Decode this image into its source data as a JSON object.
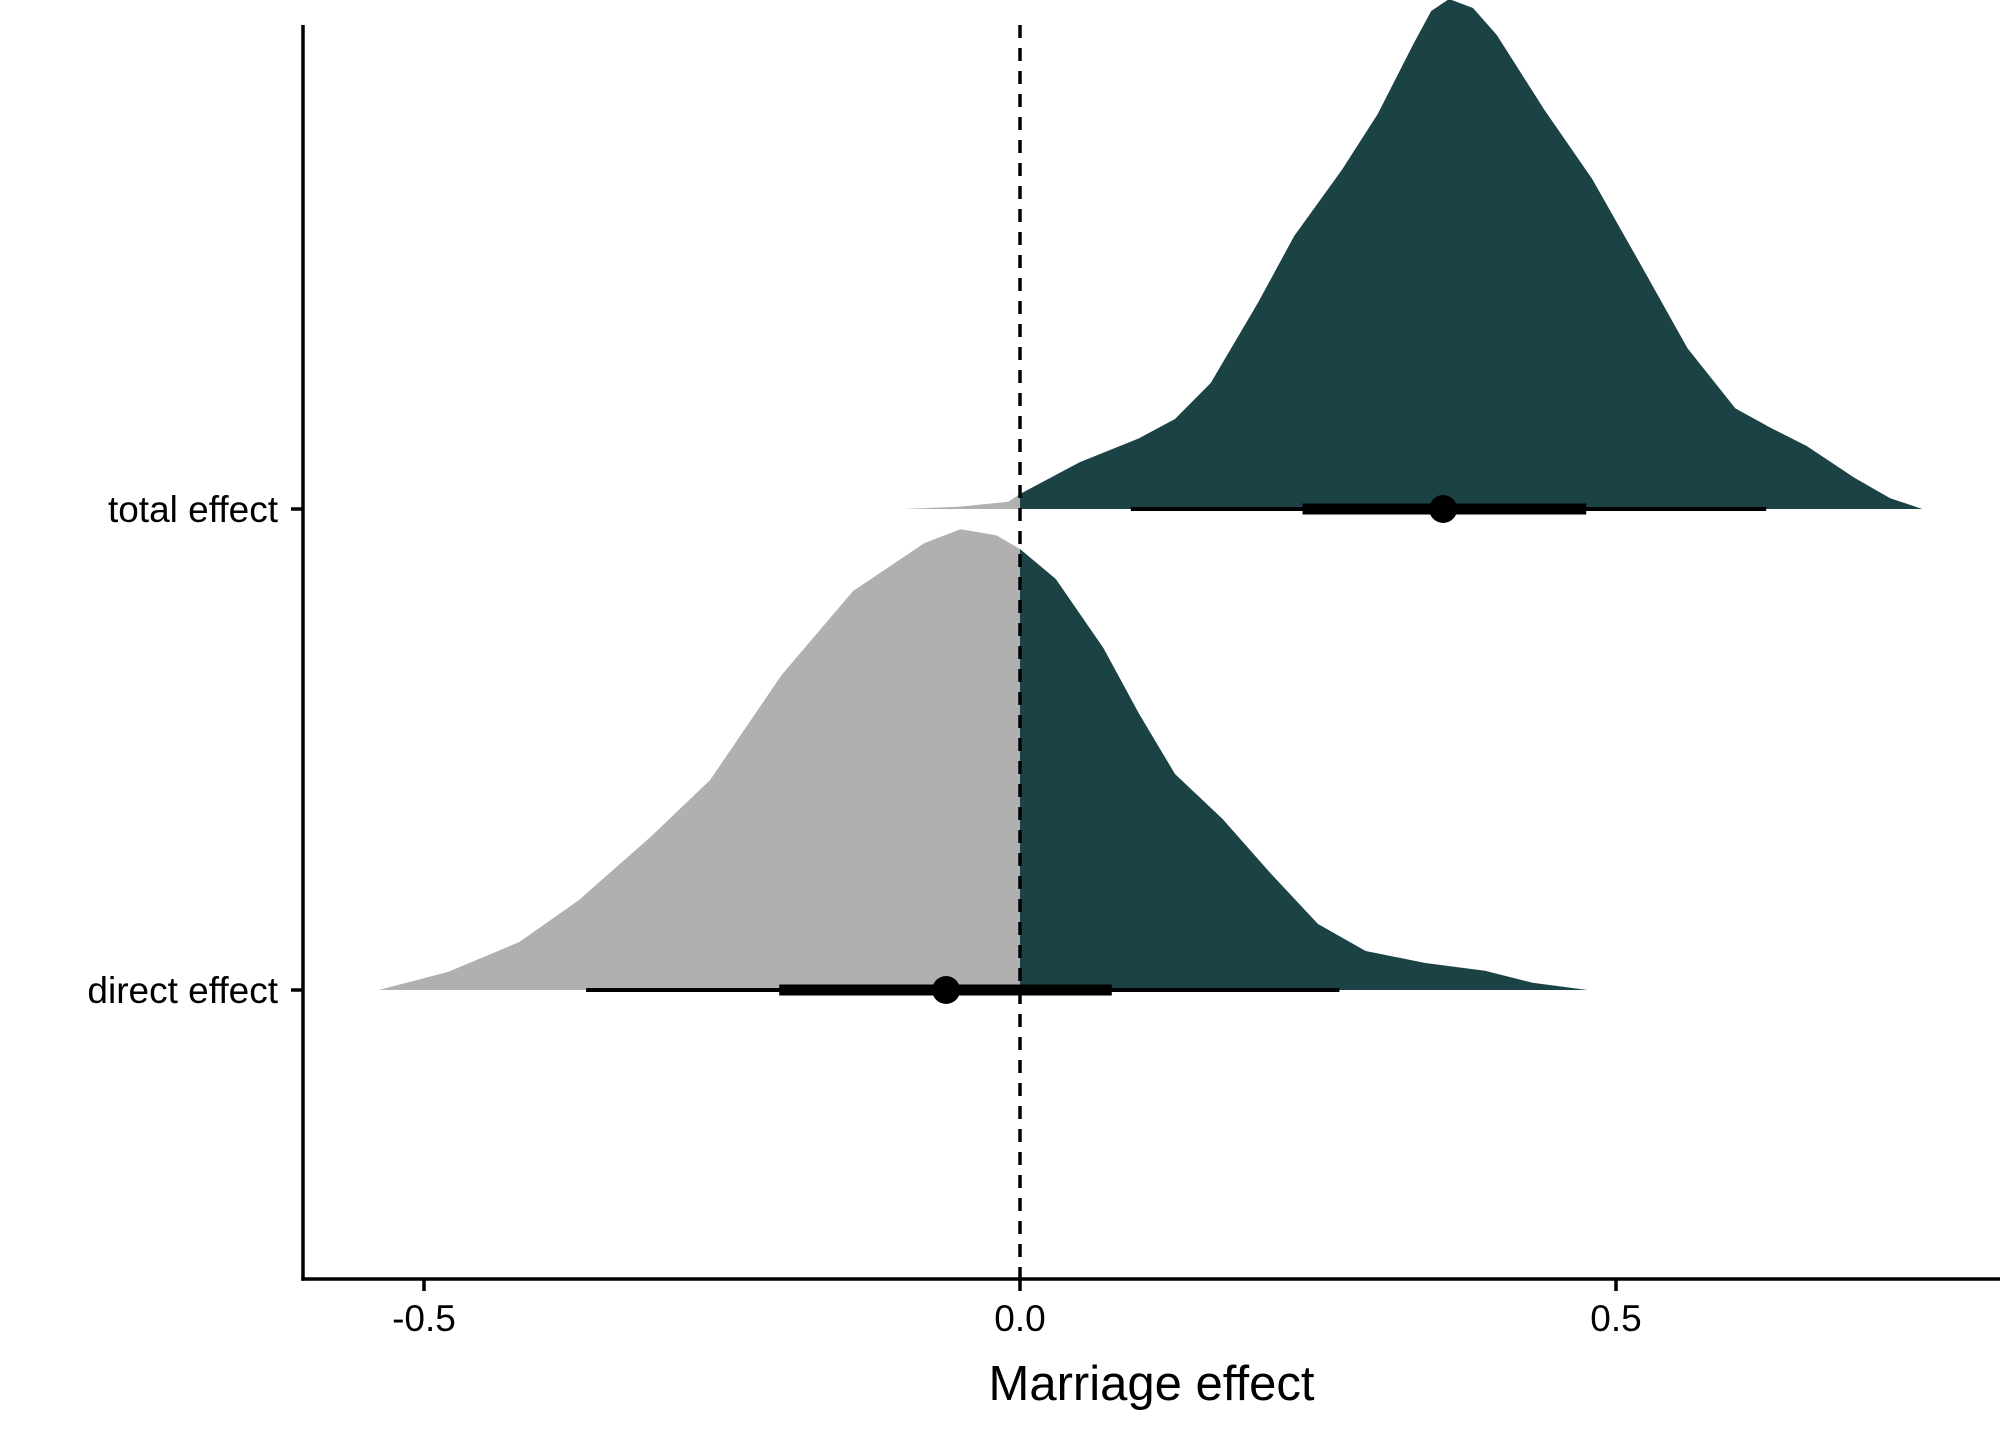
{
  "chart_data": {
    "type": "density",
    "title": "",
    "xlabel": "Marriage effect",
    "ylabel": "",
    "xlim": [
      -0.61,
      0.81
    ],
    "x_ticks": [
      {
        "value": -0.5,
        "label": "-0.5"
      },
      {
        "value": 0.0,
        "label": "0.0"
      },
      {
        "value": 0.5,
        "label": "0.5"
      }
    ],
    "reference_line": {
      "x": 0.0,
      "style": "dashed"
    },
    "fill_colors": {
      "below_zero": "#b0b0b0",
      "above_zero": "#1b4345"
    },
    "grid": false,
    "legend": "none",
    "series": [
      {
        "label": "total effect",
        "point_estimate": 0.355,
        "interval_66": [
          0.237,
          0.475
        ],
        "interval_95": [
          0.093,
          0.626
        ],
        "density": [
          [
            -0.097,
            0.0
          ],
          [
            -0.05,
            0.004
          ],
          [
            -0.01,
            0.012
          ],
          [
            0.0,
            0.025
          ],
          [
            0.05,
            0.078
          ],
          [
            0.1,
            0.118
          ],
          [
            0.13,
            0.15
          ],
          [
            0.16,
            0.21
          ],
          [
            0.2,
            0.345
          ],
          [
            0.23,
            0.455
          ],
          [
            0.27,
            0.565
          ],
          [
            0.3,
            0.658
          ],
          [
            0.33,
            0.775
          ],
          [
            0.345,
            0.83
          ],
          [
            0.36,
            0.85
          ],
          [
            0.38,
            0.835
          ],
          [
            0.4,
            0.79
          ],
          [
            0.44,
            0.665
          ],
          [
            0.48,
            0.55
          ],
          [
            0.52,
            0.41
          ],
          [
            0.56,
            0.268
          ],
          [
            0.6,
            0.168
          ],
          [
            0.63,
            0.135
          ],
          [
            0.66,
            0.105
          ],
          [
            0.7,
            0.052
          ],
          [
            0.73,
            0.018
          ],
          [
            0.757,
            0.0
          ]
        ]
      },
      {
        "label": "direct effect",
        "point_estimate": -0.062,
        "interval_66": [
          -0.202,
          0.077
        ],
        "interval_95": [
          -0.364,
          0.268
        ],
        "density": [
          [
            -0.538,
            0.0
          ],
          [
            -0.48,
            0.03
          ],
          [
            -0.42,
            0.08
          ],
          [
            -0.37,
            0.15
          ],
          [
            -0.31,
            0.255
          ],
          [
            -0.26,
            0.35
          ],
          [
            -0.2,
            0.525
          ],
          [
            -0.14,
            0.665
          ],
          [
            -0.08,
            0.745
          ],
          [
            -0.05,
            0.768
          ],
          [
            -0.02,
            0.758
          ],
          [
            0.0,
            0.735
          ],
          [
            0.03,
            0.685
          ],
          [
            0.07,
            0.57
          ],
          [
            0.1,
            0.46
          ],
          [
            0.13,
            0.36
          ],
          [
            0.17,
            0.285
          ],
          [
            0.21,
            0.195
          ],
          [
            0.25,
            0.11
          ],
          [
            0.29,
            0.065
          ],
          [
            0.34,
            0.045
          ],
          [
            0.39,
            0.032
          ],
          [
            0.43,
            0.012
          ],
          [
            0.476,
            0.0
          ]
        ]
      }
    ]
  }
}
